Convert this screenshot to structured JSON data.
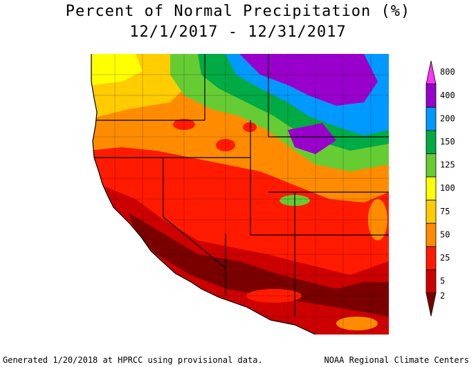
{
  "title": {
    "line1": "Percent of Normal Precipitation (%)",
    "line2": "12/1/2017 - 12/31/2017"
  },
  "legend": {
    "labels": [
      "800",
      "400",
      "200",
      "150",
      "125",
      "100",
      "75",
      "50",
      "25",
      "5",
      "2"
    ],
    "colors": {
      "800": "#ff33ff",
      "400": "#9900cc",
      "200": "#0099ff",
      "150": "#00aa44",
      "125": "#66cc33",
      "100": "#ffff00",
      "75": "#ffcc00",
      "50": "#ff8c00",
      "25": "#ff1a00",
      "5": "#cc0000",
      "2": "#7a0000"
    }
  },
  "footer": {
    "left": "Generated 1/20/2018 at HPRCC using provisional data.",
    "right": "NOAA Regional Climate Centers"
  }
}
